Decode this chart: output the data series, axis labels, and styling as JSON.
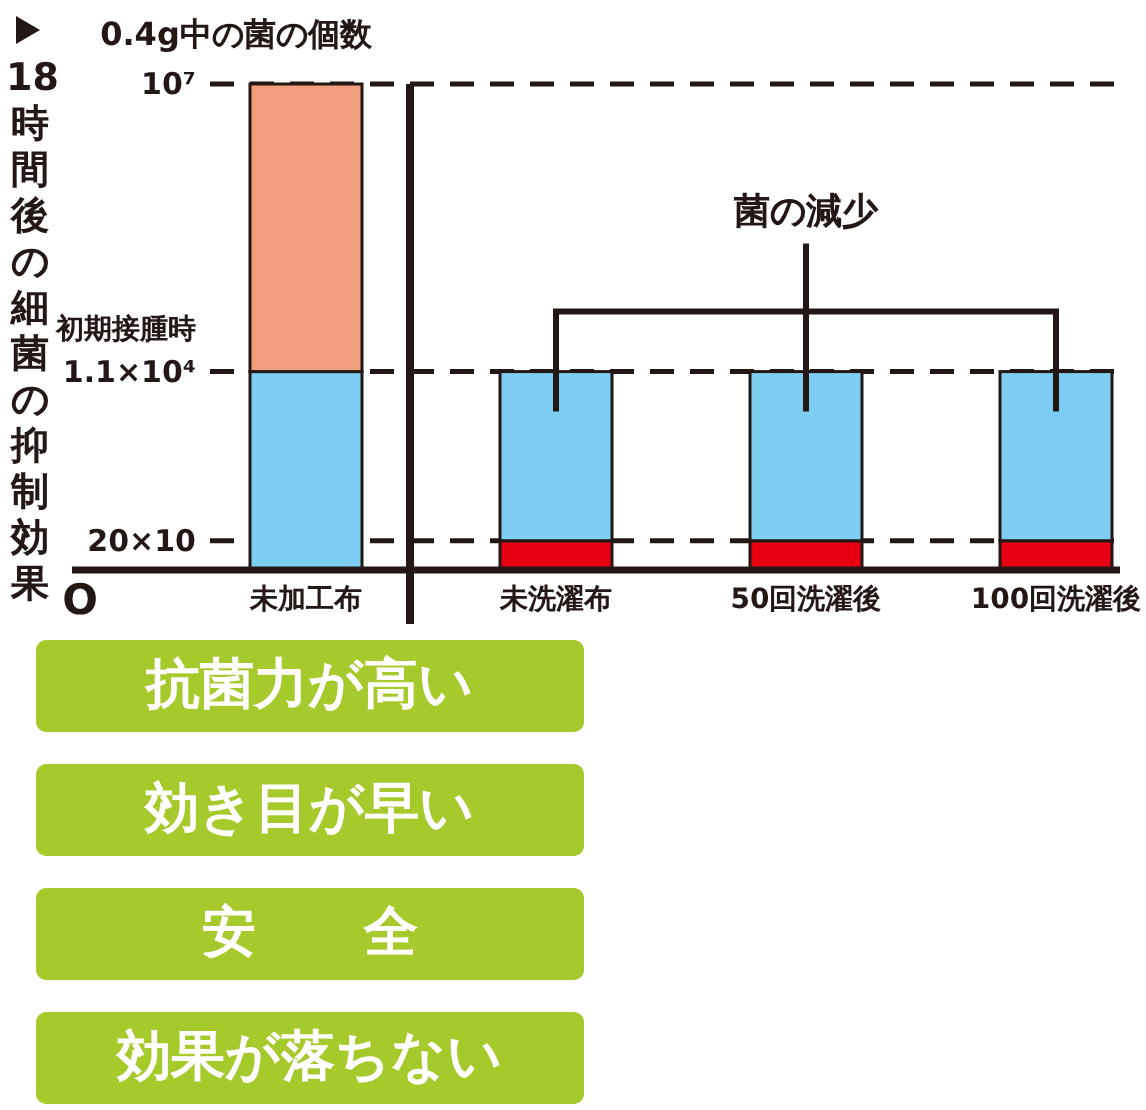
{
  "chart_data": [
    {
      "type": "bar",
      "title": "18時間後の細菌の抑制効果",
      "ylabel": "0.4g中の菌の個数",
      "categories": [
        "未加工布"
      ],
      "series": [
        {
          "color": "#7ecef4",
          "values": [
            11000
          ]
        },
        {
          "color": "#f19e7b",
          "values": [
            9989000
          ]
        }
      ],
      "stacked": true,
      "log": true,
      "ylim": [
        100,
        10000000
      ],
      "yticks": [
        {
          "value": 200,
          "label": "20×10"
        },
        {
          "value": 11000,
          "label": "1.1×10⁴"
        },
        {
          "value": 10000000,
          "label": "10⁷"
        }
      ],
      "grid": "y",
      "annotations": [
        "O",
        "初期接腫時"
      ]
    },
    {
      "type": "bar",
      "categories": [
        "未洗濯布",
        "50回洗濯後",
        "100回洗濯後"
      ],
      "series": [
        {
          "color": "#e60012",
          "values": [
            200,
            200,
            200
          ]
        },
        {
          "color": "#7ecef4",
          "values": [
            10800,
            10800,
            10800
          ]
        }
      ],
      "stacked": true,
      "log": true,
      "ylim": [
        100,
        10000000
      ],
      "grid": "y",
      "tick_labels": "x",
      "annotations": [
        "菌の減少"
      ]
    },
    {
      "type": "other",
      "annotations": [
        "抗菌力が高い",
        "効き目が早い",
        "安　　全",
        "効果が落ちない"
      ]
    }
  ]
}
